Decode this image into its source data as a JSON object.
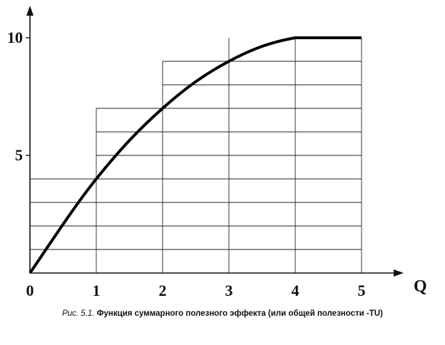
{
  "chart_data": {
    "type": "line",
    "xlabel": "Q",
    "ylabel": "",
    "x": [
      0,
      1,
      2,
      3,
      4,
      5
    ],
    "xlim": [
      0,
      5
    ],
    "ylim": [
      0,
      10
    ],
    "x_ticks": [
      "0",
      "1",
      "2",
      "3",
      "4",
      "5"
    ],
    "y_ticks": [
      "5",
      "10"
    ],
    "y_tick_values": [
      5,
      10
    ],
    "series": [
      {
        "name": "",
        "values": [
          0,
          4,
          7,
          9,
          10,
          10
        ]
      }
    ],
    "grid": true,
    "color": "#000000"
  },
  "caption": {
    "figure_label": "Рис. 5.1.",
    "text": "Функция суммарного полезного эффекта (или общей полезности -TU)"
  }
}
